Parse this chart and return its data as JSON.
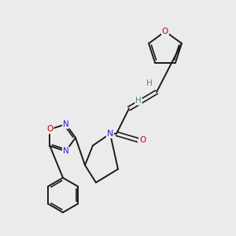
{
  "bg_color": "#ebebeb",
  "bond_color": "#1a1a1a",
  "atom_colors": {
    "O": "#cc0000",
    "N": "#2020dd",
    "C": "#1a1a1a",
    "H": "#4a8a8a"
  }
}
